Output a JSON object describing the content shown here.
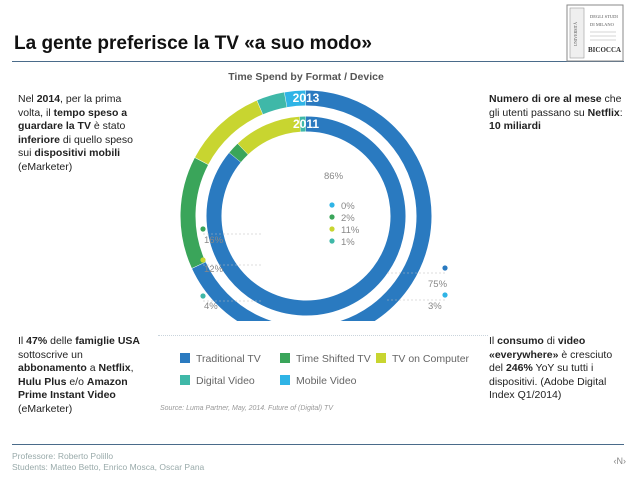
{
  "slide": {
    "title": "La gente preferisce la TV «a suo modo»",
    "page_number": "‹N›"
  },
  "logo": {
    "lines": [
      "UNIVERSITÀ",
      "DEGLI STUDI",
      "DI MILANO",
      "BICOCCA"
    ]
  },
  "left_top": {
    "p1": "Nel ",
    "b1": "2014",
    "p2": ", per la prima volta, il ",
    "b2": "tempo speso a guardare la TV",
    "p3": " è stato ",
    "b3": "inferiore",
    "p4": " di quello speso sui ",
    "b4": "dispositivi mobili",
    "p5": " (eMarketer)"
  },
  "right_top": {
    "b1": "Numero di ore al mese",
    "p1": " che gli utenti passano su ",
    "b2": "Netflix",
    "p2": ": ",
    "b3": "10 miliardi"
  },
  "left_bottom": {
    "p1": "Il ",
    "b1": "47%",
    "p2": " delle ",
    "b2": "famiglie USA",
    "p3": " sottoscrive un ",
    "b3": "abbonamento",
    "p4": " a ",
    "b4": "Netflix",
    "p5": ", ",
    "b5": "Hulu Plus",
    "p6": " e/o ",
    "b6": "Amazon Prime Instant Video",
    "p7": " (eMarketer)"
  },
  "right_bottom": {
    "p1": "Il ",
    "b1": "consumo",
    "p2": " di ",
    "b2": "video «everywhere»",
    "p3": " è cresciuto del ",
    "b3": "246%",
    "p4": " YoY su tutti i dispositivi. (Adobe Digital Index Q1/2014)"
  },
  "footer": {
    "line1": "Professore: Roberto Polillo",
    "line2": "Students: Matteo Betto, Enrico Mosca, Oscar Pana"
  },
  "chart_data": {
    "type": "donut",
    "title": "Time Spend by Format / Device",
    "source": "Source: Luma Partner, May, 2014. Future of (Digital) TV",
    "colors": {
      "Traditional TV": "#2a7ac0",
      "Time Shifted TV": "#3aa55a",
      "TV on Computer": "#c8d530",
      "Digital Video": "#3fb8a8",
      "Mobile Video": "#2fb4e6"
    },
    "series": [
      {
        "name": "2013",
        "values": [
          {
            "label": "Traditional TV",
            "value": 75,
            "text": "75%"
          },
          {
            "label": "Time Shifted TV",
            "value": 16,
            "text": "16%"
          },
          {
            "label": "TV on Computer",
            "value": 12,
            "text": "12%"
          },
          {
            "label": "Digital Video",
            "value": 4,
            "text": "4%"
          },
          {
            "label": "Mobile Video",
            "value": 3,
            "text": "3%"
          }
        ]
      },
      {
        "name": "2011",
        "values": [
          {
            "label": "Traditional TV",
            "value": 86,
            "text": "86%"
          },
          {
            "label": "Time Shifted TV",
            "value": 2,
            "text": "2%"
          },
          {
            "label": "TV on Computer",
            "value": 11,
            "text": "11%"
          },
          {
            "label": "Digital Video",
            "value": 1,
            "text": "1%"
          },
          {
            "label": "Mobile Video",
            "value": 0,
            "text": "0%"
          }
        ]
      }
    ],
    "legend": [
      "Traditional TV",
      "Time Shifted TV",
      "TV on Computer",
      "Digital Video",
      "Mobile Video"
    ]
  }
}
